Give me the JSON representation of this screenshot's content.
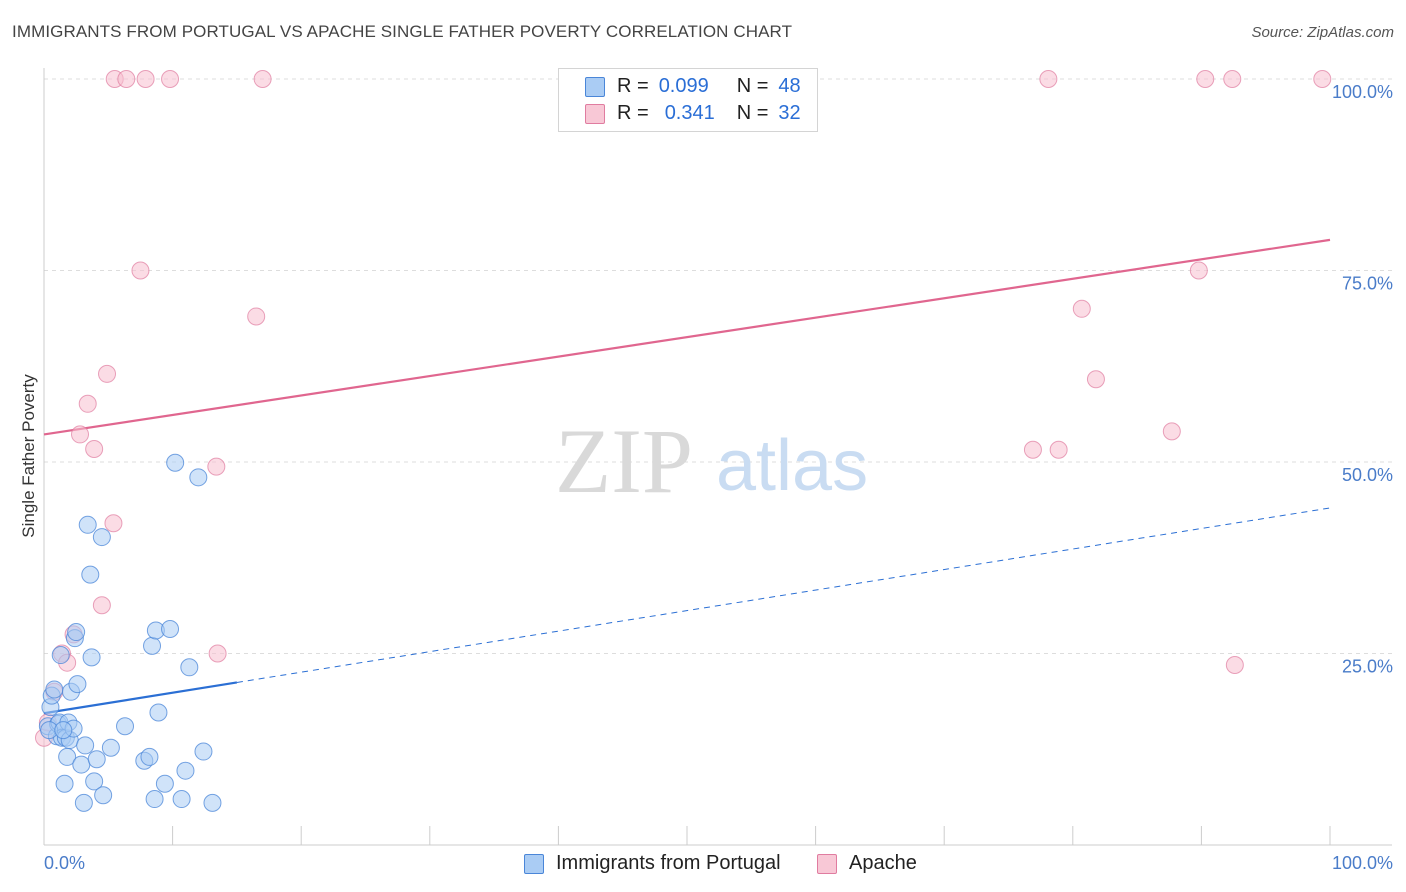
{
  "header": {
    "title": "IMMIGRANTS FROM PORTUGAL VS APACHE SINGLE FATHER POVERTY CORRELATION CHART",
    "source": "Source: ZipAtlas.com"
  },
  "watermark": {
    "zip": "ZIP",
    "atlas": "atlas"
  },
  "legend_top": {
    "rows": [
      {
        "r_label": "R =",
        "r_value": "0.099",
        "n_label": "N =",
        "n_value": "48"
      },
      {
        "r_label": "R =",
        "r_value": "0.341",
        "n_label": "N =",
        "n_value": "32"
      }
    ]
  },
  "legend_bottom": {
    "items": [
      "Immigrants from Portugal",
      "Apache"
    ]
  },
  "colors": {
    "blue_fill": "#aaccf4",
    "blue_stroke": "#4a86d8",
    "blue_line": "#2b6fd4",
    "pink_fill": "#f8bfd0",
    "pink_stroke": "#e07ca0",
    "pink_line": "#e0668f",
    "tick_text": "#4a7cc9",
    "grid": "#dddddd"
  },
  "chart_data": {
    "type": "scatter",
    "title": "IMMIGRANTS FROM PORTUGAL VS APACHE SINGLE FATHER POVERTY CORRELATION CHART",
    "xlabel": "",
    "ylabel": "Single Father Poverty",
    "xlim": [
      0,
      100
    ],
    "ylim": [
      0,
      100
    ],
    "x_tick_labels": [
      "0.0%",
      "100.0%"
    ],
    "y_tick_labels": [
      "25.0%",
      "50.0%",
      "75.0%",
      "100.0%"
    ],
    "y_ticks": [
      25,
      50,
      75,
      100
    ],
    "grid": true,
    "legend_position": "top-center",
    "series": [
      {
        "name": "Immigrants from Portugal",
        "color": "#4a86d8",
        "R": 0.099,
        "N": 48,
        "points": [
          [
            0.3,
            15.5
          ],
          [
            0.5,
            18.0
          ],
          [
            0.6,
            19.5
          ],
          [
            0.8,
            20.3
          ],
          [
            1.0,
            14.2
          ],
          [
            1.1,
            15.8
          ],
          [
            1.2,
            16.0
          ],
          [
            1.3,
            24.8
          ],
          [
            1.4,
            14.0
          ],
          [
            1.6,
            8.0
          ],
          [
            1.7,
            14.0
          ],
          [
            1.8,
            11.5
          ],
          [
            1.9,
            16.0
          ],
          [
            2.0,
            13.7
          ],
          [
            2.1,
            20.0
          ],
          [
            2.3,
            15.2
          ],
          [
            2.4,
            27.0
          ],
          [
            2.5,
            27.8
          ],
          [
            2.6,
            21.0
          ],
          [
            2.9,
            10.5
          ],
          [
            3.1,
            5.5
          ],
          [
            3.2,
            13.0
          ],
          [
            3.4,
            41.8
          ],
          [
            3.6,
            35.3
          ],
          [
            3.7,
            24.5
          ],
          [
            3.9,
            8.3
          ],
          [
            4.1,
            11.2
          ],
          [
            4.5,
            40.2
          ],
          [
            4.6,
            6.5
          ],
          [
            5.2,
            12.7
          ],
          [
            6.3,
            15.5
          ],
          [
            7.8,
            11.0
          ],
          [
            8.2,
            11.5
          ],
          [
            8.4,
            26.0
          ],
          [
            8.6,
            6.0
          ],
          [
            8.7,
            28.0
          ],
          [
            8.9,
            17.3
          ],
          [
            9.4,
            8.0
          ],
          [
            9.8,
            28.2
          ],
          [
            10.2,
            49.9
          ],
          [
            10.7,
            6.0
          ],
          [
            11.0,
            9.7
          ],
          [
            11.3,
            23.2
          ],
          [
            12.0,
            48.0
          ],
          [
            12.4,
            12.2
          ],
          [
            13.1,
            5.5
          ],
          [
            0.4,
            15.0
          ],
          [
            1.5,
            15.0
          ]
        ],
        "trend": {
          "solid_x": [
            0,
            15
          ],
          "x": [
            0,
            100
          ],
          "y": [
            17.2,
            44.0
          ]
        }
      },
      {
        "name": "Apache",
        "color": "#e07ca0",
        "R": 0.341,
        "N": 32,
        "points": [
          [
            0.0,
            14.0
          ],
          [
            0.3,
            16.0
          ],
          [
            0.8,
            20.0
          ],
          [
            1.4,
            25.0
          ],
          [
            1.8,
            23.8
          ],
          [
            2.3,
            27.5
          ],
          [
            2.8,
            53.6
          ],
          [
            3.4,
            57.6
          ],
          [
            3.9,
            51.7
          ],
          [
            4.5,
            31.3
          ],
          [
            4.9,
            61.5
          ],
          [
            5.4,
            42.0
          ],
          [
            5.5,
            100.0
          ],
          [
            6.4,
            100.0
          ],
          [
            7.5,
            75.0
          ],
          [
            7.9,
            100.0
          ],
          [
            9.8,
            100.0
          ],
          [
            13.4,
            49.4
          ],
          [
            13.5,
            25.0
          ],
          [
            16.5,
            69.0
          ],
          [
            17.0,
            100.0
          ],
          [
            76.9,
            51.6
          ],
          [
            78.1,
            100.0
          ],
          [
            78.9,
            51.6
          ],
          [
            80.7,
            70.0
          ],
          [
            81.8,
            60.8
          ],
          [
            87.7,
            54.0
          ],
          [
            89.8,
            75.0
          ],
          [
            90.3,
            100.0
          ],
          [
            92.4,
            100.0
          ],
          [
            92.6,
            23.5
          ],
          [
            99.4,
            100.0
          ]
        ],
        "trend": {
          "x": [
            0,
            100
          ],
          "y": [
            53.6,
            79.0
          ]
        }
      }
    ]
  }
}
